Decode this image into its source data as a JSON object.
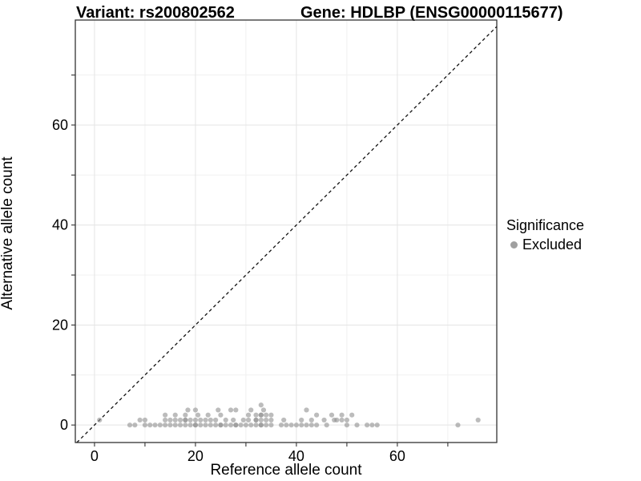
{
  "title_left": "Variant: rs200802562",
  "title_right": "Gene: HDLBP (ENSG00000115677)",
  "legend": {
    "title": "Significance",
    "items": [
      {
        "label": "Excluded",
        "color": "#a0a0a0"
      }
    ]
  },
  "colors": {
    "point": "#909090",
    "legend_dot": "#a0a0a0",
    "grid_major": "#e4e4e4",
    "grid_minor": "#efefef",
    "panel_border": "#333333",
    "identity_line": "#111111",
    "text": "#000000"
  },
  "chart_data": {
    "type": "scatter",
    "xlabel": "Reference allele count",
    "ylabel": "Alternative allele count",
    "xlim": [
      -3.8,
      79.7
    ],
    "ylim": [
      -3.5,
      81.0
    ],
    "x_ticks": [
      0,
      20,
      40,
      60
    ],
    "x_minor_ticks": [
      10,
      30,
      50,
      70
    ],
    "y_ticks": [
      0,
      20,
      40,
      60
    ],
    "y_minor_ticks": [
      10,
      30,
      50,
      70
    ],
    "grid": true,
    "legend_position": "right",
    "identity_line": {
      "style": "dashed",
      "equation": "y = x"
    },
    "series": [
      {
        "name": "Excluded",
        "color": "#909090",
        "points": [
          [
            7,
            0
          ],
          [
            8,
            0
          ],
          [
            10,
            0
          ],
          [
            11,
            0
          ],
          [
            12,
            0
          ],
          [
            13,
            0
          ],
          [
            14,
            0
          ],
          [
            15,
            0
          ],
          [
            16,
            0
          ],
          [
            17,
            0
          ],
          [
            18,
            0
          ],
          [
            19,
            0
          ],
          [
            20,
            0
          ],
          [
            20,
            0
          ],
          [
            21,
            0
          ],
          [
            22,
            0
          ],
          [
            23,
            0
          ],
          [
            24,
            0
          ],
          [
            25,
            0
          ],
          [
            25,
            0
          ],
          [
            26,
            0
          ],
          [
            27,
            0
          ],
          [
            28,
            0
          ],
          [
            28,
            0
          ],
          [
            29,
            0
          ],
          [
            30,
            0
          ],
          [
            31,
            0
          ],
          [
            32,
            0
          ],
          [
            33,
            0
          ],
          [
            33,
            0
          ],
          [
            34,
            0
          ],
          [
            35,
            0
          ],
          [
            37,
            0
          ],
          [
            38,
            0
          ],
          [
            39,
            0
          ],
          [
            40,
            0
          ],
          [
            41,
            0
          ],
          [
            42,
            0
          ],
          [
            43,
            0
          ],
          [
            44,
            0
          ],
          [
            46,
            0
          ],
          [
            50,
            0
          ],
          [
            52,
            0
          ],
          [
            54,
            0
          ],
          [
            55,
            0
          ],
          [
            56,
            0
          ],
          [
            72,
            0
          ],
          [
            1,
            1
          ],
          [
            9,
            1
          ],
          [
            10,
            1
          ],
          [
            14,
            1
          ],
          [
            15,
            1
          ],
          [
            16,
            1
          ],
          [
            17,
            1
          ],
          [
            18,
            1
          ],
          [
            18,
            1
          ],
          [
            19,
            1
          ],
          [
            20,
            1
          ],
          [
            21,
            1
          ],
          [
            22,
            1
          ],
          [
            23,
            1
          ],
          [
            24,
            1
          ],
          [
            26,
            1
          ],
          [
            27.5,
            1
          ],
          [
            29.5,
            1
          ],
          [
            30.5,
            1
          ],
          [
            32,
            1
          ],
          [
            32,
            1
          ],
          [
            33,
            1
          ],
          [
            34,
            1
          ],
          [
            35,
            1
          ],
          [
            37.5,
            1
          ],
          [
            41,
            1
          ],
          [
            43,
            1
          ],
          [
            45.5,
            1
          ],
          [
            47.5,
            1
          ],
          [
            48,
            1
          ],
          [
            49,
            1
          ],
          [
            50,
            1
          ],
          [
            76,
            1
          ],
          [
            14,
            2
          ],
          [
            16,
            2
          ],
          [
            18,
            2
          ],
          [
            20.5,
            2
          ],
          [
            22.5,
            2
          ],
          [
            25,
            2
          ],
          [
            30.5,
            2
          ],
          [
            32,
            2
          ],
          [
            33,
            2
          ],
          [
            33,
            2
          ],
          [
            34,
            2
          ],
          [
            35,
            2
          ],
          [
            44,
            2
          ],
          [
            47,
            2
          ],
          [
            49,
            2
          ],
          [
            51,
            2
          ],
          [
            18.5,
            3
          ],
          [
            20,
            3
          ],
          [
            24.5,
            3
          ],
          [
            27,
            3
          ],
          [
            28,
            3
          ],
          [
            31,
            3
          ],
          [
            33.5,
            3
          ],
          [
            42,
            3
          ],
          [
            33,
            4
          ]
        ]
      }
    ]
  }
}
